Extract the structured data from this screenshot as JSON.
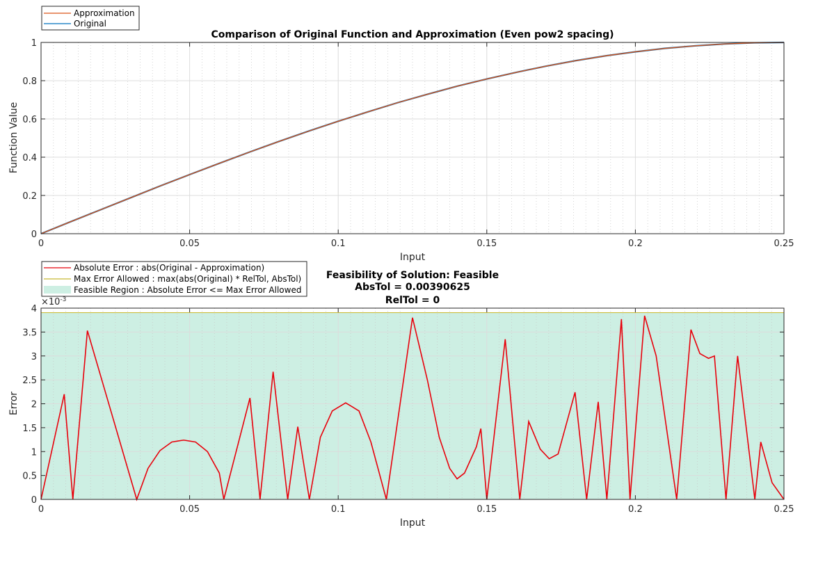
{
  "colors": {
    "approximation": "#D95319",
    "original": "#0072BD",
    "abs_error": "#E8000B",
    "max_error": "#C8B830",
    "feasible": "#CDEFE3"
  },
  "chart_data": [
    {
      "type": "line",
      "title": "Comparison of Original Function and Approximation (Even pow2 spacing)",
      "xlabel": "Input",
      "ylabel": "Function Value",
      "xlim": [
        0,
        0.25
      ],
      "ylim": [
        0,
        1
      ],
      "xticks": [
        "0",
        "0.05",
        "0.1",
        "0.15",
        "0.2",
        "0.25"
      ],
      "yticks": [
        "0",
        "0.2",
        "0.4",
        "0.6",
        "0.8",
        "1"
      ],
      "grid": true,
      "legend_position": "top-left",
      "series": [
        {
          "name": "Approximation",
          "color": "#D95319",
          "x": [
            0,
            0.01,
            0.02,
            0.03,
            0.04,
            0.05,
            0.06,
            0.07,
            0.08,
            0.09,
            0.1,
            0.11,
            0.12,
            0.13,
            0.14,
            0.15,
            0.16,
            0.17,
            0.18,
            0.19,
            0.2,
            0.21,
            0.22,
            0.23,
            0.24,
            0.25
          ],
          "values": [
            0,
            0.063,
            0.125,
            0.187,
            0.249,
            0.309,
            0.368,
            0.426,
            0.482,
            0.536,
            0.588,
            0.637,
            0.685,
            0.729,
            0.771,
            0.809,
            0.844,
            0.876,
            0.905,
            0.93,
            0.951,
            0.969,
            0.982,
            0.992,
            0.998,
            1.0
          ]
        },
        {
          "name": "Original",
          "color": "#0072BD",
          "x": [
            0,
            0.01,
            0.02,
            0.03,
            0.04,
            0.05,
            0.06,
            0.07,
            0.08,
            0.09,
            0.1,
            0.11,
            0.12,
            0.13,
            0.14,
            0.15,
            0.16,
            0.17,
            0.18,
            0.19,
            0.2,
            0.21,
            0.22,
            0.23,
            0.24,
            0.25
          ],
          "values": [
            0,
            0.063,
            0.125,
            0.187,
            0.249,
            0.309,
            0.368,
            0.426,
            0.482,
            0.536,
            0.588,
            0.637,
            0.685,
            0.729,
            0.771,
            0.809,
            0.844,
            0.876,
            0.905,
            0.93,
            0.951,
            0.969,
            0.982,
            0.992,
            0.998,
            1.0
          ]
        }
      ]
    },
    {
      "type": "line",
      "title_lines": [
        "Feasibility of Solution: Feasible",
        "AbsTol = 0.00390625",
        "RelTol = 0"
      ],
      "xlabel": "Input",
      "ylabel": "Error",
      "exponent_label": "×10",
      "exponent_power": "-3",
      "xlim": [
        0,
        0.25
      ],
      "ylim": [
        0,
        4
      ],
      "xticks": [
        "0",
        "0.05",
        "0.1",
        "0.15",
        "0.2",
        "0.25"
      ],
      "yticks": [
        "0",
        "0.5",
        "1",
        "1.5",
        "2",
        "2.5",
        "3",
        "3.5",
        "4"
      ],
      "grid": true,
      "legend_position": "top-left",
      "legend": [
        "Absolute Error : abs(Original - Approximation)",
        "Max Error Allowed : max(abs(Original) * RelTol, AbsTol)",
        "Feasible Region : Absolute Error <= Max Error Allowed"
      ],
      "max_error_allowed": 3.90625,
      "feasible_region": [
        0,
        3.90625
      ],
      "error_series": {
        "name": "Absolute Error : abs(Original - Approximation)",
        "x": [
          0,
          0.0078,
          0.0107,
          0.0156,
          0.0322,
          0.036,
          0.04,
          0.044,
          0.048,
          0.052,
          0.056,
          0.06,
          0.0615,
          0.0703,
          0.0737,
          0.0781,
          0.083,
          0.0864,
          0.0903,
          0.094,
          0.098,
          0.1025,
          0.107,
          0.111,
          0.1162,
          0.125,
          0.13,
          0.134,
          0.1375,
          0.14,
          0.1425,
          0.1465,
          0.148,
          0.15,
          0.1562,
          0.1611,
          0.1641,
          0.168,
          0.171,
          0.174,
          0.1797,
          0.1836,
          0.1875,
          0.1904,
          0.1953,
          0.1982,
          0.2031,
          0.207,
          0.2139,
          0.2187,
          0.2217,
          0.2246,
          0.2266,
          0.2305,
          0.2344,
          0.2402,
          0.2422,
          0.246,
          0.25
        ],
        "values": [
          0,
          2.2,
          0,
          3.53,
          0,
          0.65,
          1.02,
          1.2,
          1.24,
          1.2,
          1.0,
          0.55,
          0,
          2.12,
          0,
          2.67,
          0,
          1.52,
          0,
          1.3,
          1.85,
          2.02,
          1.85,
          1.2,
          0,
          3.8,
          2.5,
          1.3,
          0.65,
          0.43,
          0.55,
          1.1,
          1.48,
          0,
          3.35,
          0,
          1.63,
          1.05,
          0.85,
          0.95,
          2.24,
          0,
          2.04,
          0,
          3.77,
          0,
          3.84,
          3.0,
          0,
          3.55,
          3.05,
          2.95,
          3.0,
          0,
          3.0,
          0,
          1.2,
          0.35,
          0
        ]
      },
      "max_error_series": {
        "name": "Max Error Allowed : max(abs(Original) * RelTol, AbsTol)",
        "x": [
          0,
          0.25
        ],
        "values": [
          3.90625,
          3.90625
        ]
      }
    }
  ]
}
